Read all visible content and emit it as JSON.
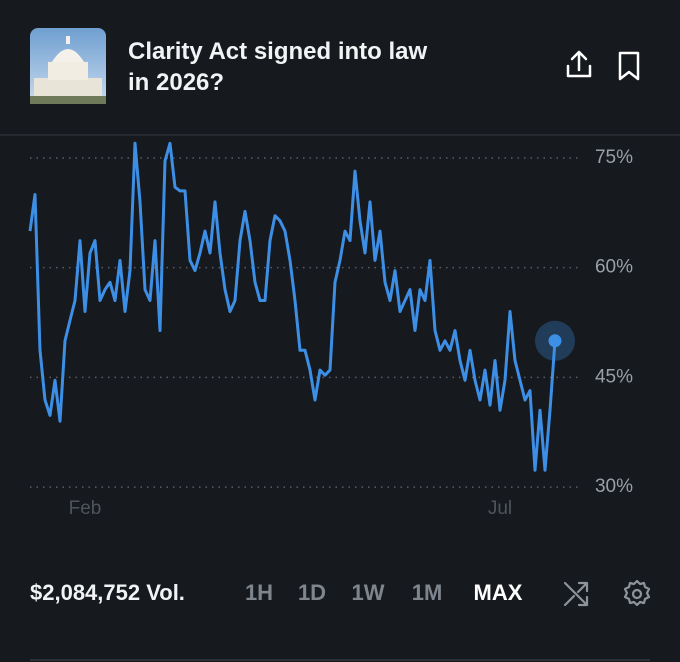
{
  "header": {
    "title": "Clarity Act signed into law in 2026?"
  },
  "chart_data": {
    "type": "line",
    "color": "#3d8fe6",
    "categories": [
      null,
      null,
      null,
      null,
      null,
      null,
      null,
      null,
      null,
      null,
      null,
      "Feb",
      null,
      null,
      null,
      null,
      null,
      null,
      null,
      null,
      null,
      null,
      null,
      null,
      null,
      null,
      null,
      null,
      null,
      null,
      null,
      null,
      null,
      null,
      null,
      null,
      null,
      null,
      null,
      null,
      null,
      null,
      null,
      null,
      null,
      null,
      null,
      null,
      null,
      null,
      null,
      null,
      null,
      null,
      null,
      null,
      null,
      null,
      null,
      null,
      null,
      null,
      null,
      null,
      null,
      null,
      null,
      null,
      null,
      null,
      null,
      null,
      null,
      null,
      null,
      null,
      null,
      null,
      null,
      null,
      null,
      null,
      null,
      null,
      null,
      null,
      null,
      null,
      null,
      null,
      null,
      null,
      null,
      null,
      "Jul",
      null,
      null,
      null,
      null,
      null,
      null,
      null,
      null,
      null,
      null,
      null
    ],
    "values": [
      65,
      70,
      48.7,
      41.9,
      39.8,
      44.6,
      39,
      50,
      52.8,
      55.5,
      63.7,
      54,
      62,
      63.7,
      55.5,
      57,
      58,
      55.5,
      61,
      54,
      59.6,
      77,
      69,
      57,
      55.5,
      63.7,
      51.4,
      74.6,
      77,
      71,
      70.5,
      70.5,
      61,
      59.6,
      62,
      65,
      62,
      69,
      62,
      57,
      54,
      55.5,
      63.7,
      67.7,
      63.7,
      58,
      55.5,
      55.5,
      63.7,
      67.1,
      66.4,
      65,
      61,
      55.5,
      48.7,
      48.7,
      46,
      41.9,
      46,
      45.3,
      46,
      58,
      61,
      65,
      63.7,
      73.2,
      66.4,
      62,
      69,
      61,
      65,
      58,
      55.5,
      59.6,
      54,
      55.5,
      57,
      51.4,
      57,
      55.5,
      61,
      51.4,
      48.7,
      50,
      48.7,
      51.4,
      47.3,
      44.6,
      48.7,
      44.6,
      41.9,
      46,
      41.2,
      47.3,
      40.5,
      44.6,
      54,
      47.3,
      44.6,
      41.9,
      43.2,
      32.3,
      40.5,
      32.3,
      40.5,
      50
    ],
    "ylim": [
      28,
      78
    ],
    "yticks": [
      {
        "value": 75,
        "label": "75%"
      },
      {
        "value": 60,
        "label": "60%"
      },
      {
        "value": 45,
        "label": "45%"
      },
      {
        "value": 30,
        "label": "30%"
      }
    ],
    "grid": true
  },
  "footer": {
    "volume": "$2,084,752 Vol.",
    "ranges": [
      "1H",
      "1D",
      "1W",
      "1M",
      "MAX"
    ],
    "selected": "MAX"
  }
}
